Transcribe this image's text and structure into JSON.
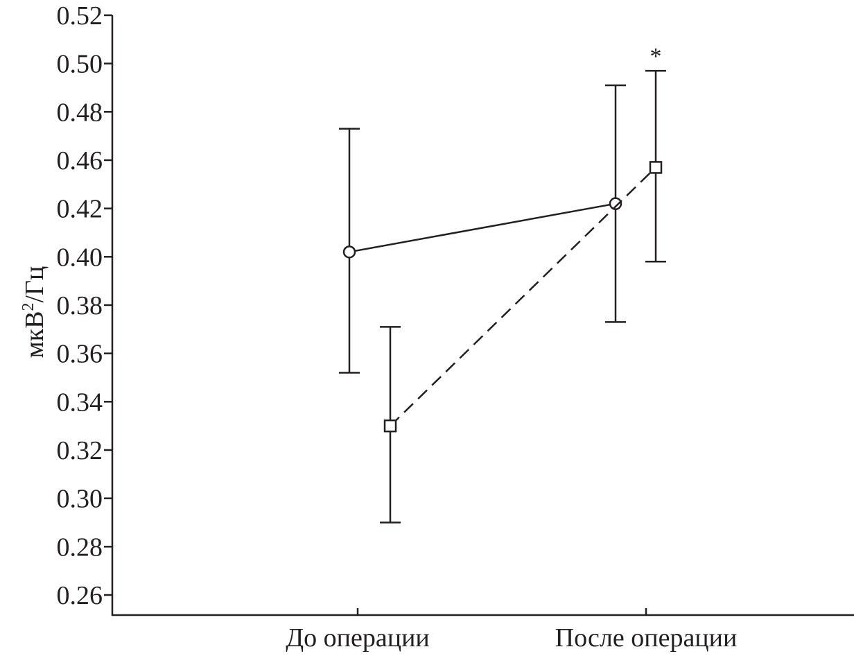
{
  "chart_data": {
    "type": "line",
    "title": "",
    "xlabel": "",
    "ylabel": "мкВ²/Гц",
    "ylabel_base": "мкВ",
    "ylabel_sup": "2",
    "ylabel_rest": "/Гц",
    "categories": [
      "До операции",
      "После операции"
    ],
    "ytick_labels": [
      "0.26",
      "0.28",
      "0.30",
      "0.32",
      "0.34",
      "0.36",
      "0.38",
      "0.40",
      "0.42",
      "0.46",
      "0.48",
      "0.50",
      "0.52"
    ],
    "ylim": [
      0.252,
      0.52
    ],
    "grid": false,
    "series": [
      {
        "name": "circle-solid",
        "marker": "circle",
        "linestyle": "solid",
        "values": [
          0.402,
          0.422
        ],
        "err_high": [
          0.453,
          0.471
        ],
        "err_low": [
          0.352,
          0.373
        ]
      },
      {
        "name": "square-dashed",
        "marker": "square",
        "linestyle": "dashed",
        "values": [
          0.33,
          0.437
        ],
        "err_high": [
          0.371,
          0.477
        ],
        "err_low": [
          0.29,
          0.398
        ]
      }
    ],
    "annotations": [
      {
        "text": "*",
        "series": 1,
        "category": 1
      }
    ]
  }
}
